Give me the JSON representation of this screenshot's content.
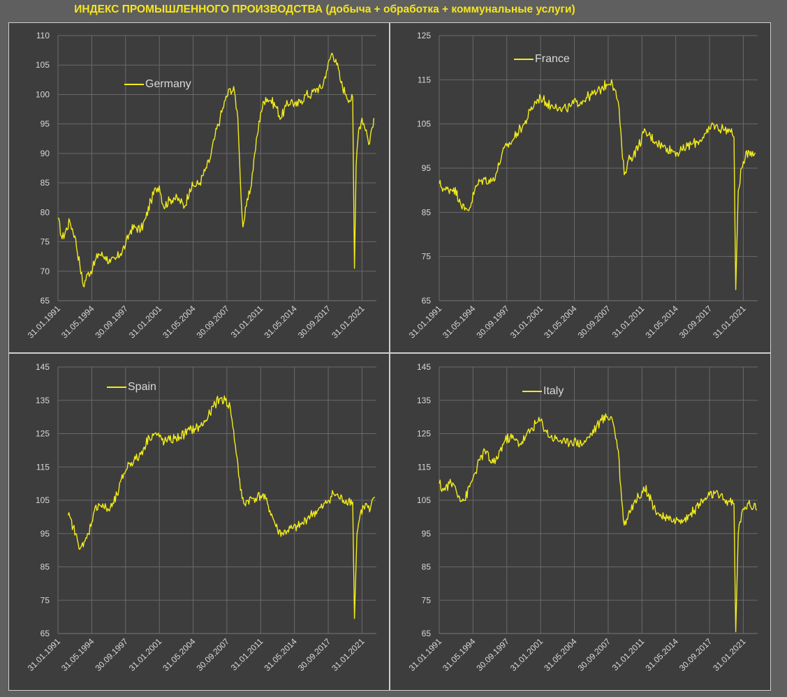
{
  "title": "ИНДЕКС ПРОМЫШЛЕННОГО ПРОИЗВОДСТВА (добыча + обработка + коммунальные услуги)",
  "colors": {
    "background": "#5f5f5f",
    "plot_background": "#3d3d3d",
    "line": "#f2ec1a",
    "title": "#f5e61d",
    "grid": "#6a6a6a",
    "text": "#d9d9d9"
  },
  "chart_data": [
    {
      "type": "line",
      "series_name": "Germany",
      "legend": "upper-left",
      "grid": true,
      "x_ticks": [
        "31.01.1991",
        "31.05.1994",
        "30.09.1997",
        "31.01.2001",
        "31.05.2004",
        "30.09.2007",
        "31.01.2011",
        "31.05.2014",
        "30.09.2017",
        "31.01.2021"
      ],
      "x_range": [
        "1991-01",
        "2022-06"
      ],
      "ylim": [
        65,
        110
      ],
      "y_ticks": [
        65,
        70,
        75,
        80,
        85,
        90,
        95,
        100,
        105,
        110
      ],
      "points": [
        [
          "1991-01",
          79
        ],
        [
          "1991-06",
          75.5
        ],
        [
          "1992-03",
          78.5
        ],
        [
          "1992-09",
          76
        ],
        [
          "1993-03",
          71
        ],
        [
          "1993-07",
          67.5
        ],
        [
          "1993-12",
          69.5
        ],
        [
          "1994-06",
          70.5
        ],
        [
          "1995-01",
          73
        ],
        [
          "1995-09",
          72.5
        ],
        [
          "1996-03",
          71.5
        ],
        [
          "1996-09",
          72
        ],
        [
          "1997-03",
          73
        ],
        [
          "1997-09",
          74.5
        ],
        [
          "1998-03",
          77
        ],
        [
          "1998-09",
          77.5
        ],
        [
          "1999-03",
          77
        ],
        [
          "1999-09",
          79
        ],
        [
          "2000-03",
          82
        ],
        [
          "2000-09",
          84
        ],
        [
          "2001-01",
          84.5
        ],
        [
          "2001-06",
          81
        ],
        [
          "2002-01",
          82
        ],
        [
          "2002-06",
          82.5
        ],
        [
          "2003-01",
          82
        ],
        [
          "2003-07",
          81
        ],
        [
          "2004-01",
          84
        ],
        [
          "2004-06",
          84.5
        ],
        [
          "2005-01",
          85
        ],
        [
          "2005-07",
          87
        ],
        [
          "2006-01",
          89
        ],
        [
          "2006-07",
          93
        ],
        [
          "2007-01",
          96
        ],
        [
          "2007-07",
          99
        ],
        [
          "2008-01",
          101
        ],
        [
          "2008-06",
          100.5
        ],
        [
          "2008-10",
          96
        ],
        [
          "2009-01",
          85
        ],
        [
          "2009-04",
          77.5
        ],
        [
          "2009-08",
          81
        ],
        [
          "2010-01",
          84
        ],
        [
          "2010-06",
          90
        ],
        [
          "2011-01",
          97
        ],
        [
          "2011-07",
          99.5
        ],
        [
          "2012-01",
          99
        ],
        [
          "2012-07",
          98
        ],
        [
          "2013-01",
          96
        ],
        [
          "2013-07",
          98
        ],
        [
          "2014-01",
          99
        ],
        [
          "2014-07",
          98
        ],
        [
          "2015-01",
          99
        ],
        [
          "2015-07",
          100
        ],
        [
          "2016-01",
          100
        ],
        [
          "2016-07",
          101
        ],
        [
          "2017-01",
          101
        ],
        [
          "2017-07",
          104
        ],
        [
          "2018-01",
          107
        ],
        [
          "2018-06",
          106
        ],
        [
          "2018-12",
          102
        ],
        [
          "2019-06",
          100
        ],
        [
          "2019-12",
          99
        ],
        [
          "2020-02",
          99.5
        ],
        [
          "2020-04",
          70.5
        ],
        [
          "2020-06",
          88
        ],
        [
          "2020-09",
          94
        ],
        [
          "2021-01",
          96
        ],
        [
          "2021-06",
          94
        ],
        [
          "2021-09",
          91.5
        ],
        [
          "2022-03",
          96
        ]
      ]
    },
    {
      "type": "line",
      "series_name": "France",
      "legend": "upper-left",
      "grid": true,
      "x_ticks": [
        "31.01.1991",
        "31.05.1994",
        "30.09.1997",
        "31.01.2001",
        "31.05.2004",
        "30.09.2007",
        "31.01.2011",
        "31.05.2014",
        "30.09.2017",
        "31.01.2021"
      ],
      "x_range": [
        "1991-01",
        "2022-06"
      ],
      "ylim": [
        65,
        125
      ],
      "y_ticks": [
        65,
        75,
        85,
        95,
        105,
        115,
        125
      ],
      "points": [
        [
          "1991-01",
          91.5
        ],
        [
          "1991-08",
          90
        ],
        [
          "1992-06",
          90.5
        ],
        [
          "1993-01",
          88
        ],
        [
          "1993-07",
          85.5
        ],
        [
          "1994-01",
          86
        ],
        [
          "1994-07",
          90
        ],
        [
          "1995-01",
          92
        ],
        [
          "1995-07",
          92.5
        ],
        [
          "1996-03",
          92
        ],
        [
          "1996-09",
          94
        ],
        [
          "1997-03",
          98
        ],
        [
          "1997-09",
          100
        ],
        [
          "1998-03",
          101
        ],
        [
          "1998-09",
          103
        ],
        [
          "1999-06",
          105
        ],
        [
          "2000-01",
          108
        ],
        [
          "2000-07",
          110
        ],
        [
          "2001-01",
          111
        ],
        [
          "2001-07",
          110
        ],
        [
          "2002-01",
          109
        ],
        [
          "2002-07",
          109.5
        ],
        [
          "2003-01",
          108
        ],
        [
          "2003-07",
          108.5
        ],
        [
          "2004-01",
          109
        ],
        [
          "2004-07",
          110
        ],
        [
          "2005-01",
          110
        ],
        [
          "2005-07",
          111
        ],
        [
          "2006-01",
          111.5
        ],
        [
          "2006-07",
          112
        ],
        [
          "2007-01",
          113
        ],
        [
          "2007-07",
          114
        ],
        [
          "2008-01",
          115
        ],
        [
          "2008-04",
          113
        ],
        [
          "2008-09",
          110
        ],
        [
          "2009-01",
          100
        ],
        [
          "2009-04",
          93.5
        ],
        [
          "2009-09",
          97
        ],
        [
          "2010-03",
          98
        ],
        [
          "2010-09",
          100
        ],
        [
          "2011-03",
          103
        ],
        [
          "2011-09",
          102.5
        ],
        [
          "2012-06",
          101
        ],
        [
          "2013-01",
          100
        ],
        [
          "2013-07",
          99.5
        ],
        [
          "2014-01",
          99
        ],
        [
          "2014-07",
          98.5
        ],
        [
          "2015-01",
          99
        ],
        [
          "2015-07",
          100
        ],
        [
          "2016-01",
          100.5
        ],
        [
          "2016-07",
          101
        ],
        [
          "2017-01",
          102
        ],
        [
          "2017-07",
          103
        ],
        [
          "2018-01",
          105
        ],
        [
          "2018-07",
          104
        ],
        [
          "2019-01",
          104
        ],
        [
          "2019-09",
          103.5
        ],
        [
          "2020-02",
          102
        ],
        [
          "2020-04",
          67.5
        ],
        [
          "2020-07",
          90
        ],
        [
          "2020-11",
          95
        ],
        [
          "2021-03",
          97
        ],
        [
          "2021-07",
          99
        ],
        [
          "2022-03",
          98.5
        ]
      ]
    },
    {
      "type": "line",
      "series_name": "Spain",
      "legend": "upper-left",
      "grid": true,
      "x_ticks": [
        "31.01.1991",
        "31.05.1994",
        "30.09.1997",
        "31.01.2001",
        "31.05.2004",
        "30.09.2007",
        "31.01.2011",
        "31.05.2014",
        "30.09.2017",
        "31.01.2021"
      ],
      "x_range": [
        "1991-01",
        "2022-06"
      ],
      "ylim": [
        65,
        145
      ],
      "y_ticks": [
        65,
        75,
        85,
        95,
        105,
        115,
        125,
        135,
        145
      ],
      "points": [
        [
          "1992-01",
          100.5
        ],
        [
          "1992-07",
          97
        ],
        [
          "1993-01",
          92
        ],
        [
          "1993-07",
          91
        ],
        [
          "1994-01",
          95
        ],
        [
          "1994-07",
          101
        ],
        [
          "1995-01",
          104
        ],
        [
          "1995-07",
          103
        ],
        [
          "1996-01",
          102
        ],
        [
          "1996-07",
          104
        ],
        [
          "1997-01",
          108
        ],
        [
          "1997-07",
          113
        ],
        [
          "1998-01",
          116
        ],
        [
          "1998-07",
          117
        ],
        [
          "1999-01",
          118
        ],
        [
          "1999-07",
          121
        ],
        [
          "2000-01",
          124
        ],
        [
          "2000-07",
          125
        ],
        [
          "2001-01",
          124
        ],
        [
          "2001-07",
          122.5
        ],
        [
          "2002-01",
          123
        ],
        [
          "2002-07",
          123.5
        ],
        [
          "2003-01",
          124
        ],
        [
          "2003-07",
          125
        ],
        [
          "2004-01",
          126
        ],
        [
          "2004-07",
          126.5
        ],
        [
          "2005-01",
          127
        ],
        [
          "2005-07",
          128.5
        ],
        [
          "2006-01",
          131
        ],
        [
          "2006-07",
          134
        ],
        [
          "2007-01",
          135.5
        ],
        [
          "2007-07",
          135
        ],
        [
          "2008-01",
          133
        ],
        [
          "2008-04",
          127
        ],
        [
          "2008-09",
          118
        ],
        [
          "2009-01",
          108
        ],
        [
          "2009-05",
          104
        ],
        [
          "2009-10",
          105
        ],
        [
          "2010-03",
          105.5
        ],
        [
          "2010-09",
          106
        ],
        [
          "2011-03",
          106.5
        ],
        [
          "2011-09",
          104
        ],
        [
          "2012-03",
          100
        ],
        [
          "2012-09",
          96
        ],
        [
          "2013-03",
          95
        ],
        [
          "2013-09",
          96
        ],
        [
          "2014-03",
          96.5
        ],
        [
          "2014-09",
          97
        ],
        [
          "2015-03",
          98
        ],
        [
          "2015-09",
          100
        ],
        [
          "2016-03",
          101
        ],
        [
          "2016-09",
          102
        ],
        [
          "2017-03",
          103
        ],
        [
          "2017-09",
          105
        ],
        [
          "2018-03",
          107
        ],
        [
          "2018-09",
          106
        ],
        [
          "2019-03",
          105
        ],
        [
          "2019-09",
          105
        ],
        [
          "2020-02",
          104.5
        ],
        [
          "2020-04",
          69.5
        ],
        [
          "2020-07",
          95
        ],
        [
          "2020-11",
          101
        ],
        [
          "2021-03",
          103
        ],
        [
          "2021-07",
          103.5
        ],
        [
          "2021-10",
          101.5
        ],
        [
          "2022-04",
          106
        ]
      ]
    },
    {
      "type": "line",
      "series_name": "Italy",
      "legend": "upper-left",
      "grid": true,
      "x_ticks": [
        "31.01.1991",
        "31.05.1994",
        "30.09.1997",
        "31.01.2001",
        "31.05.2004",
        "30.09.2007",
        "31.01.2011",
        "31.05.2014",
        "30.09.2017",
        "31.01.2021"
      ],
      "x_range": [
        "1991-01",
        "2022-06"
      ],
      "ylim": [
        65,
        145
      ],
      "y_ticks": [
        65,
        75,
        85,
        95,
        105,
        115,
        125,
        135,
        145
      ],
      "points": [
        [
          "1991-01",
          110
        ],
        [
          "1991-06",
          108
        ],
        [
          "1992-01",
          110
        ],
        [
          "1992-07",
          109.5
        ],
        [
          "1993-01",
          106
        ],
        [
          "1993-07",
          105
        ],
        [
          "1994-01",
          109
        ],
        [
          "1994-07",
          113
        ],
        [
          "1995-01",
          117
        ],
        [
          "1995-07",
          120
        ],
        [
          "1996-01",
          117
        ],
        [
          "1996-07",
          116
        ],
        [
          "1997-01",
          120
        ],
        [
          "1997-07",
          123
        ],
        [
          "1998-01",
          124
        ],
        [
          "1998-07",
          123
        ],
        [
          "1999-01",
          122
        ],
        [
          "1999-07",
          124
        ],
        [
          "2000-01",
          126
        ],
        [
          "2000-07",
          128
        ],
        [
          "2001-01",
          129
        ],
        [
          "2001-07",
          126
        ],
        [
          "2002-01",
          124
        ],
        [
          "2002-07",
          123.5
        ],
        [
          "2003-01",
          123
        ],
        [
          "2003-07",
          122
        ],
        [
          "2004-01",
          123
        ],
        [
          "2004-07",
          122.5
        ],
        [
          "2005-01",
          122
        ],
        [
          "2005-07",
          123
        ],
        [
          "2006-01",
          125
        ],
        [
          "2006-07",
          127
        ],
        [
          "2007-01",
          129
        ],
        [
          "2007-07",
          130
        ],
        [
          "2008-01",
          130
        ],
        [
          "2008-04",
          127
        ],
        [
          "2008-09",
          120
        ],
        [
          "2009-01",
          105
        ],
        [
          "2009-04",
          97.5
        ],
        [
          "2009-09",
          101
        ],
        [
          "2010-03",
          104
        ],
        [
          "2010-09",
          106
        ],
        [
          "2011-03",
          109
        ],
        [
          "2011-09",
          107
        ],
        [
          "2012-03",
          103
        ],
        [
          "2012-09",
          101
        ],
        [
          "2013-03",
          99.5
        ],
        [
          "2013-09",
          99
        ],
        [
          "2014-03",
          99.5
        ],
        [
          "2014-09",
          98.5
        ],
        [
          "2015-03",
          99
        ],
        [
          "2015-09",
          100.5
        ],
        [
          "2016-03",
          102
        ],
        [
          "2016-09",
          104
        ],
        [
          "2017-03",
          105
        ],
        [
          "2017-09",
          106.5
        ],
        [
          "2018-03",
          107
        ],
        [
          "2018-09",
          106
        ],
        [
          "2019-03",
          105
        ],
        [
          "2019-09",
          104.5
        ],
        [
          "2020-02",
          104
        ],
        [
          "2020-04",
          65.5
        ],
        [
          "2020-07",
          95
        ],
        [
          "2020-11",
          101
        ],
        [
          "2021-03",
          103
        ],
        [
          "2021-07",
          104
        ],
        [
          "2021-10",
          103
        ],
        [
          "2022-03",
          104
        ],
        [
          "2022-05",
          102
        ]
      ]
    }
  ]
}
